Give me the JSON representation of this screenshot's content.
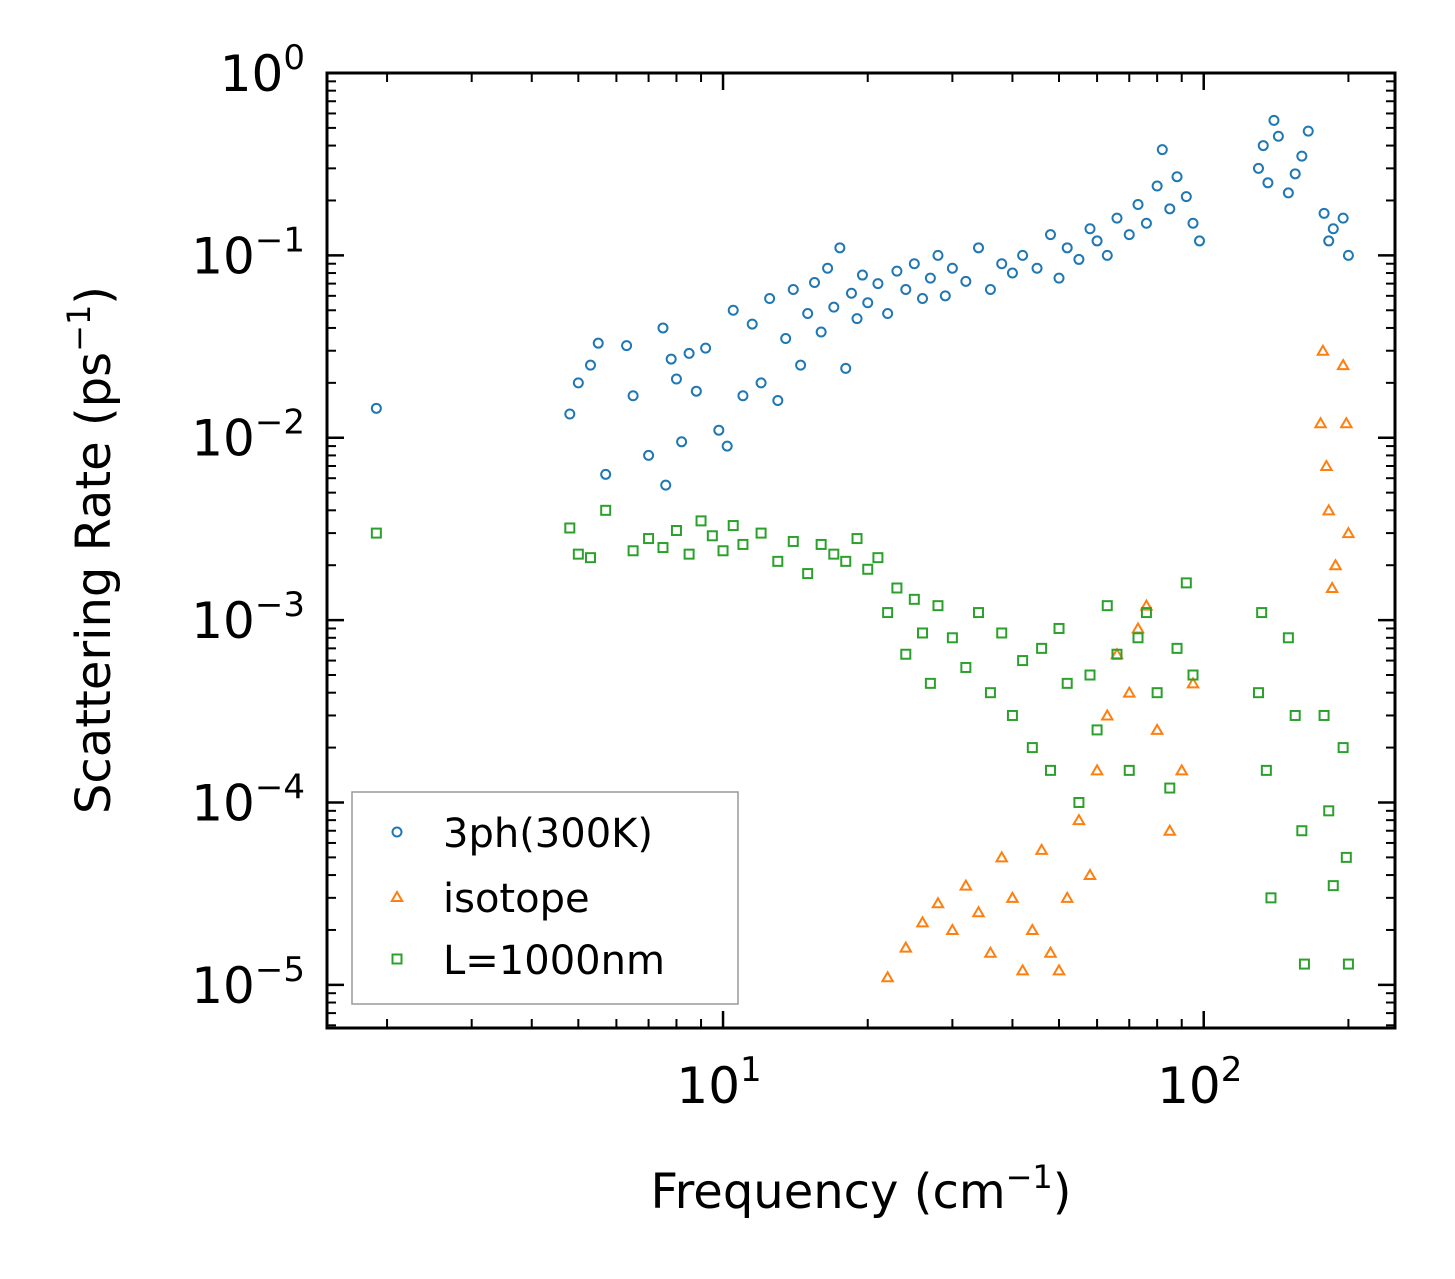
{
  "chart_data": {
    "type": "scatter",
    "title": "",
    "xlabel": "Frequency (cm",
    "xlabel_sup": "−1",
    "xlabel_end": ")",
    "ylabel": "Scattering Rate (ps",
    "ylabel_sup": "−1",
    "ylabel_end": ")",
    "xscale": "log",
    "yscale": "log",
    "xlim": [
      1.5,
      250
    ],
    "ylim": [
      5.8e-06,
      1.0
    ],
    "x_ticks": [
      {
        "base": "10",
        "exp": "1",
        "value": 10
      },
      {
        "base": "10",
        "exp": "2",
        "value": 100
      }
    ],
    "y_ticks": [
      {
        "base": "10",
        "exp": "0",
        "value": 1
      },
      {
        "base": "10",
        "exp": "−1",
        "value": 0.1
      },
      {
        "base": "10",
        "exp": "−2",
        "value": 0.01
      },
      {
        "base": "10",
        "exp": "−3",
        "value": 0.001
      },
      {
        "base": "10",
        "exp": "−4",
        "value": 0.0001
      },
      {
        "base": "10",
        "exp": "−5",
        "value": 1e-05
      }
    ],
    "legend_position": "bottom-left",
    "series": [
      {
        "name": "3ph(300K)",
        "marker": "circle",
        "color": "#1f77b4",
        "points": [
          [
            1.9,
            0.0145
          ],
          [
            4.8,
            0.0135
          ],
          [
            5.0,
            0.02
          ],
          [
            5.3,
            0.025
          ],
          [
            5.5,
            0.033
          ],
          [
            5.7,
            0.0063
          ],
          [
            6.3,
            0.032
          ],
          [
            6.5,
            0.017
          ],
          [
            7.0,
            0.008
          ],
          [
            7.5,
            0.04
          ],
          [
            7.6,
            0.0055
          ],
          [
            7.8,
            0.027
          ],
          [
            8.0,
            0.021
          ],
          [
            8.2,
            0.0095
          ],
          [
            8.5,
            0.029
          ],
          [
            8.8,
            0.018
          ],
          [
            9.2,
            0.031
          ],
          [
            9.8,
            0.011
          ],
          [
            10.2,
            0.009
          ],
          [
            10.5,
            0.05
          ],
          [
            11.0,
            0.017
          ],
          [
            11.5,
            0.042
          ],
          [
            12.0,
            0.02
          ],
          [
            12.5,
            0.058
          ],
          [
            13.0,
            0.016
          ],
          [
            13.5,
            0.035
          ],
          [
            14.0,
            0.065
          ],
          [
            14.5,
            0.025
          ],
          [
            15.0,
            0.048
          ],
          [
            15.5,
            0.071
          ],
          [
            16.0,
            0.038
          ],
          [
            16.5,
            0.085
          ],
          [
            17.0,
            0.052
          ],
          [
            17.5,
            0.11
          ],
          [
            18.0,
            0.024
          ],
          [
            18.5,
            0.062
          ],
          [
            19.0,
            0.045
          ],
          [
            19.5,
            0.078
          ],
          [
            20.0,
            0.055
          ],
          [
            21.0,
            0.07
          ],
          [
            22.0,
            0.048
          ],
          [
            23.0,
            0.082
          ],
          [
            24.0,
            0.065
          ],
          [
            25.0,
            0.09
          ],
          [
            26.0,
            0.058
          ],
          [
            27.0,
            0.075
          ],
          [
            28.0,
            0.1
          ],
          [
            29.0,
            0.06
          ],
          [
            30.0,
            0.085
          ],
          [
            32.0,
            0.072
          ],
          [
            34.0,
            0.11
          ],
          [
            36.0,
            0.065
          ],
          [
            38.0,
            0.09
          ],
          [
            40.0,
            0.08
          ],
          [
            42.0,
            0.1
          ],
          [
            45.0,
            0.085
          ],
          [
            48.0,
            0.13
          ],
          [
            50.0,
            0.075
          ],
          [
            52.0,
            0.11
          ],
          [
            55.0,
            0.095
          ],
          [
            58.0,
            0.14
          ],
          [
            60.0,
            0.12
          ],
          [
            63.0,
            0.1
          ],
          [
            66.0,
            0.16
          ],
          [
            70.0,
            0.13
          ],
          [
            73.0,
            0.19
          ],
          [
            76.0,
            0.15
          ],
          [
            80.0,
            0.24
          ],
          [
            82.0,
            0.38
          ],
          [
            85.0,
            0.18
          ],
          [
            88.0,
            0.27
          ],
          [
            92.0,
            0.21
          ],
          [
            95.0,
            0.15
          ],
          [
            98.0,
            0.12
          ],
          [
            130.0,
            0.3
          ],
          [
            133.0,
            0.4
          ],
          [
            136.0,
            0.25
          ],
          [
            140.0,
            0.55
          ],
          [
            143.0,
            0.45
          ],
          [
            150.0,
            0.22
          ],
          [
            155.0,
            0.28
          ],
          [
            160.0,
            0.35
          ],
          [
            165.0,
            0.48
          ],
          [
            178.0,
            0.17
          ],
          [
            182.0,
            0.12
          ],
          [
            186.0,
            0.14
          ],
          [
            195.0,
            0.16
          ],
          [
            200.0,
            0.1
          ]
        ]
      },
      {
        "name": "isotope",
        "marker": "triangle",
        "color": "#ff7f0e",
        "points": [
          [
            22.0,
            1.1e-05
          ],
          [
            24.0,
            1.6e-05
          ],
          [
            26.0,
            2.2e-05
          ],
          [
            28.0,
            2.8e-05
          ],
          [
            30.0,
            2e-05
          ],
          [
            32.0,
            3.5e-05
          ],
          [
            34.0,
            2.5e-05
          ],
          [
            36.0,
            1.5e-05
          ],
          [
            38.0,
            5e-05
          ],
          [
            40.0,
            3e-05
          ],
          [
            42.0,
            1.2e-05
          ],
          [
            44.0,
            2e-05
          ],
          [
            46.0,
            5.5e-05
          ],
          [
            48.0,
            1.5e-05
          ],
          [
            50.0,
            1.2e-05
          ],
          [
            52.0,
            3e-05
          ],
          [
            55.0,
            8e-05
          ],
          [
            58.0,
            4e-05
          ],
          [
            60.0,
            0.00015
          ],
          [
            63.0,
            0.0003
          ],
          [
            66.0,
            0.00065
          ],
          [
            70.0,
            0.0004
          ],
          [
            73.0,
            0.0009
          ],
          [
            76.0,
            0.0012
          ],
          [
            80.0,
            0.00025
          ],
          [
            85.0,
            7e-05
          ],
          [
            90.0,
            0.00015
          ],
          [
            95.0,
            0.00045
          ],
          [
            175.0,
            0.012
          ],
          [
            177.0,
            0.03
          ],
          [
            180.0,
            0.007
          ],
          [
            182.0,
            0.004
          ],
          [
            185.0,
            0.0015
          ],
          [
            188.0,
            0.002
          ],
          [
            195.0,
            0.025
          ],
          [
            198.0,
            0.012
          ],
          [
            200.0,
            0.003
          ]
        ]
      },
      {
        "name": "L=1000nm",
        "marker": "square",
        "color": "#2ca02c",
        "points": [
          [
            1.9,
            0.003
          ],
          [
            4.8,
            0.0032
          ],
          [
            5.0,
            0.0023
          ],
          [
            5.3,
            0.0022
          ],
          [
            5.7,
            0.004
          ],
          [
            6.5,
            0.0024
          ],
          [
            7.0,
            0.0028
          ],
          [
            7.5,
            0.0025
          ],
          [
            8.0,
            0.0031
          ],
          [
            8.5,
            0.0023
          ],
          [
            9.0,
            0.0035
          ],
          [
            9.5,
            0.0029
          ],
          [
            10.0,
            0.0024
          ],
          [
            10.5,
            0.0033
          ],
          [
            11.0,
            0.0026
          ],
          [
            12.0,
            0.003
          ],
          [
            13.0,
            0.0021
          ],
          [
            14.0,
            0.0027
          ],
          [
            15.0,
            0.0018
          ],
          [
            16.0,
            0.0026
          ],
          [
            17.0,
            0.0023
          ],
          [
            18.0,
            0.0021
          ],
          [
            19.0,
            0.0028
          ],
          [
            20.0,
            0.0019
          ],
          [
            21.0,
            0.0022
          ],
          [
            22.0,
            0.0011
          ],
          [
            23.0,
            0.0015
          ],
          [
            24.0,
            0.00065
          ],
          [
            25.0,
            0.0013
          ],
          [
            26.0,
            0.00085
          ],
          [
            27.0,
            0.00045
          ],
          [
            28.0,
            0.0012
          ],
          [
            30.0,
            0.0008
          ],
          [
            32.0,
            0.00055
          ],
          [
            34.0,
            0.0011
          ],
          [
            36.0,
            0.0004
          ],
          [
            38.0,
            0.00085
          ],
          [
            40.0,
            0.0003
          ],
          [
            42.0,
            0.0006
          ],
          [
            44.0,
            0.0002
          ],
          [
            46.0,
            0.0007
          ],
          [
            48.0,
            0.00015
          ],
          [
            50.0,
            0.0009
          ],
          [
            52.0,
            0.00045
          ],
          [
            55.0,
            0.0001
          ],
          [
            58.0,
            0.0005
          ],
          [
            60.0,
            0.00025
          ],
          [
            63.0,
            0.0012
          ],
          [
            66.0,
            0.00065
          ],
          [
            70.0,
            0.00015
          ],
          [
            73.0,
            0.0008
          ],
          [
            76.0,
            0.0011
          ],
          [
            80.0,
            0.0004
          ],
          [
            85.0,
            0.00012
          ],
          [
            88.0,
            0.0007
          ],
          [
            92.0,
            0.0016
          ],
          [
            95.0,
            0.0005
          ],
          [
            130.0,
            0.0004
          ],
          [
            132.0,
            0.0011
          ],
          [
            135.0,
            0.00015
          ],
          [
            138.0,
            3e-05
          ],
          [
            150.0,
            0.0008
          ],
          [
            155.0,
            0.0003
          ],
          [
            160.0,
            7e-05
          ],
          [
            162.0,
            1.3e-05
          ],
          [
            178.0,
            0.0003
          ],
          [
            182.0,
            9e-05
          ],
          [
            186.0,
            3.5e-05
          ],
          [
            195.0,
            0.0002
          ],
          [
            198.0,
            5e-05
          ],
          [
            200.0,
            1.3e-05
          ]
        ]
      }
    ]
  }
}
